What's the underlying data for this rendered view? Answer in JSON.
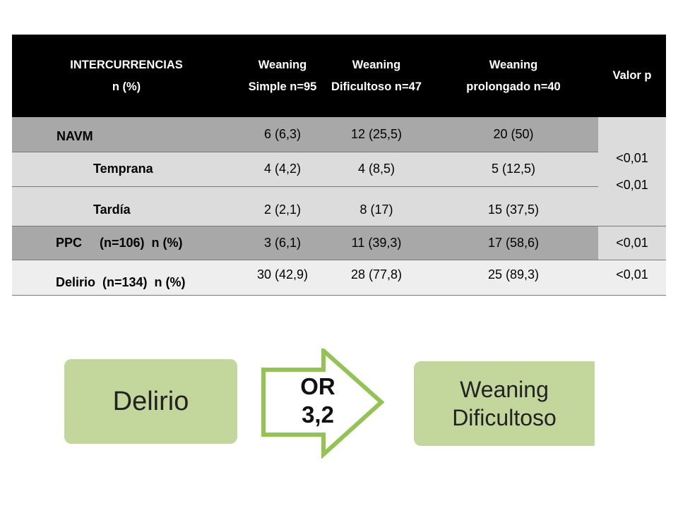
{
  "table": {
    "headers": {
      "col1": [
        "INTERCURRENCIAS",
        "n (%)"
      ],
      "col2": [
        "Weaning",
        "Simple n=95"
      ],
      "col3": [
        "Weaning",
        "Dificultoso n=47"
      ],
      "col4": [
        "Weaning",
        "prolongado n=40"
      ],
      "col5": [
        "Valor p"
      ]
    },
    "rows": [
      {
        "label": "NAVM",
        "simple": "6 (6,3)",
        "dificultoso": "12 (25,5)",
        "prolongado": "20 (50)"
      },
      {
        "label": "Temprana",
        "simple": "4 (4,2)",
        "dificultoso": "4 (8,5)",
        "prolongado": "5 (12,5)"
      },
      {
        "label": "Tardía",
        "simple": "2 (2,1)",
        "dificultoso": "8 (17)",
        "prolongado": "15 (37,5)"
      },
      {
        "label": "PPC     (n=106)  n (%)",
        "simple": "3 (6,1)",
        "dificultoso": "11 (39,3)",
        "prolongado": "17 (58,6)",
        "p": "<0,01"
      },
      {
        "label": "Delirio  (n=134)  n (%)",
        "simple": "30 (42,9)",
        "dificultoso": "28 (77,8)",
        "prolongado": "25 (89,3)",
        "p": "<0,01"
      }
    ],
    "merged_p": [
      "<0,01",
      "<0,01"
    ]
  },
  "diagram": {
    "left_box": "Delirio",
    "arrow_label": [
      "OR",
      "3,2"
    ],
    "right_box": [
      "Weaning",
      "Dificultoso"
    ],
    "box_color": "#c3d69b",
    "arrow_stroke_color": "#92c353"
  }
}
